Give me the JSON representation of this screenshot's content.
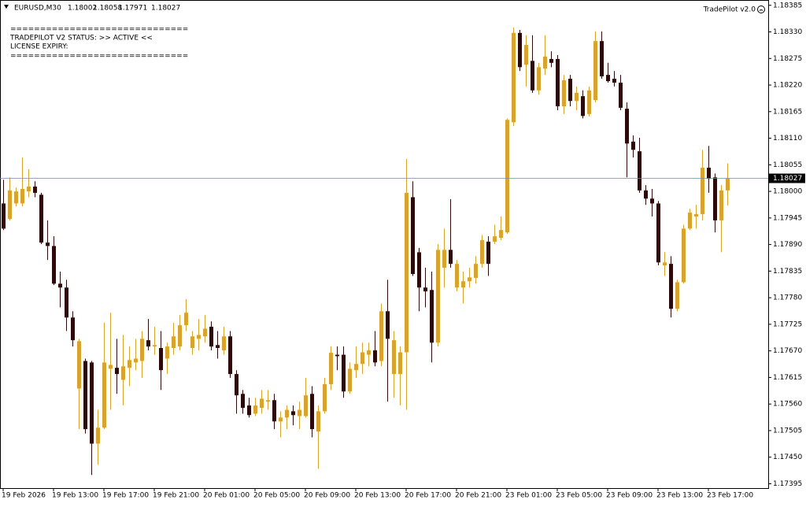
{
  "chart_data": {
    "type": "candlestick",
    "symbol": "EURUSD,M30",
    "indicator": "TradePilot v2.0",
    "annotations": [
      "==============================",
      "TRADEPILOT V2 STATUS: >> ACTIVE <<",
      "LICENSE EXPIRY:",
      "=============================="
    ],
    "colors": {
      "up": "#d8a42c",
      "down": "#2a0a0a"
    },
    "grid": false,
    "ylim": [
      1.17386,
      1.18396
    ],
    "yticks": [
      1.18385,
      {
        "value": 1.1833,
        "label": "1.18330"
      },
      1.18275,
      {
        "value": 1.1822,
        "label": "1.18220"
      },
      1.18165,
      {
        "value": 1.1811,
        "label": "1.18110"
      },
      1.18055,
      {
        "value": 1.18,
        "label": "1.18000"
      },
      1.17945,
      {
        "value": 1.1789,
        "label": "1.17890"
      },
      1.17835,
      {
        "value": 1.1778,
        "label": "1.17780"
      },
      1.17725,
      {
        "value": 1.1767,
        "label": "1.17670"
      },
      1.17615,
      {
        "value": 1.1756,
        "label": "1.17560"
      },
      1.17505,
      {
        "value": 1.1745,
        "label": "1.17450"
      },
      1.17395
    ],
    "categories": [
      "19 Feb 2026",
      null,
      null,
      null,
      null,
      null,
      null,
      null,
      "19 Feb 13:00",
      null,
      null,
      null,
      null,
      null,
      null,
      null,
      "19 Feb 17:00",
      null,
      null,
      null,
      null,
      null,
      null,
      null,
      "19 Feb 21:00",
      null,
      null,
      null,
      null,
      null,
      null,
      null,
      "20 Feb 01:00",
      null,
      null,
      null,
      null,
      null,
      null,
      null,
      "20 Feb 05:00",
      null,
      null,
      null,
      null,
      null,
      null,
      null,
      "20 Feb 09:00",
      null,
      null,
      null,
      null,
      null,
      null,
      null,
      "20 Feb 13:00",
      null,
      null,
      null,
      null,
      null,
      null,
      null,
      "20 Feb 17:00",
      null,
      null,
      null,
      null,
      null,
      null,
      null,
      "20 Feb 21:00",
      null,
      null,
      null,
      null,
      null,
      null,
      null,
      "23 Feb 01:00",
      null,
      null,
      null,
      null,
      null,
      null,
      null,
      "23 Feb 05:00",
      null,
      null,
      null,
      null,
      null,
      null,
      null,
      "23 Feb 09:00",
      null,
      null,
      null,
      null,
      null,
      null,
      null,
      "23 Feb 13:00",
      null,
      null,
      null,
      null,
      null,
      null,
      null,
      "23 Feb 17:00",
      null,
      null,
      null
    ],
    "open": [
      1.17975,
      1.17943,
      1.17975,
      1.17975,
      1.18,
      1.1801,
      1.17993,
      1.17894,
      1.17887,
      1.17809,
      1.17801,
      1.17739,
      1.17592,
      1.17649,
      1.17646,
      1.17478,
      1.17511,
      1.17633,
      1.17635,
      1.1761,
      1.17635,
      1.17646,
      1.17649,
      1.17692,
      1.17679,
      1.17676,
      1.17654,
      1.17676,
      1.17679,
      1.17723,
      1.17676,
      1.17695,
      1.177,
      1.1772,
      1.17682,
      1.17671,
      1.177,
      1.17622,
      1.17581,
      1.17557,
      1.1754,
      1.17552,
      1.17565,
      1.17568,
      1.17524,
      1.17532,
      1.17545,
      1.17535,
      1.17535,
      1.17581,
      1.17503,
      1.17545,
      1.17601,
      1.17662,
      1.17662,
      1.17586,
      1.1763,
      1.17643,
      1.17662,
      1.17671,
      1.17649,
      1.17752,
      1.17622,
      1.17622,
      1.17667,
      1.17988,
      1.17874,
      1.17801,
      1.17796,
      1.17687,
      1.17842,
      1.17879,
      1.17801,
      1.17801,
      1.17814,
      1.17821,
      1.1785,
      1.17896,
      1.17896,
      1.17904,
      1.17915,
      1.18143,
      1.18328,
      1.18262,
      1.1827,
      1.18209,
      1.18254,
      1.18274,
      1.18274,
      1.18176,
      1.18233,
      1.18187,
      1.18197,
      1.1816,
      1.18189,
      1.18311,
      1.18241,
      1.18233,
      1.18225,
      1.18171,
      1.18103,
      1.18083,
      1.18002,
      1.17985,
      1.17975,
      1.17847,
      1.1785,
      1.17757,
      1.17812,
      1.17923,
      1.17948,
      1.17953,
      1.18049,
      1.18029,
      1.1794,
      1.18002
    ],
    "high": [
      1.18024,
      1.18029,
      1.18008,
      1.1807,
      1.18046,
      1.18021,
      1.17997,
      1.1794,
      1.17907,
      1.17834,
      1.17817,
      1.17752,
      1.17695,
      1.17654,
      1.17649,
      1.17548,
      1.17728,
      1.17749,
      1.17695,
      1.17703,
      1.17679,
      1.17695,
      1.17711,
      1.17736,
      1.1772,
      1.17711,
      1.17687,
      1.17728,
      1.17744,
      1.17777,
      1.17711,
      1.17736,
      1.17744,
      1.17731,
      1.17711,
      1.1772,
      1.17711,
      1.1763,
      1.17589,
      1.17573,
      1.17573,
      1.17589,
      1.17589,
      1.17581,
      1.17545,
      1.17557,
      1.17557,
      1.17565,
      1.17614,
      1.17597,
      1.17557,
      1.17614,
      1.17679,
      1.17679,
      1.17679,
      1.17646,
      1.17679,
      1.17687,
      1.17687,
      1.17711,
      1.17768,
      1.17817,
      1.17711,
      1.17679,
      1.18067,
      1.18021,
      1.17883,
      1.17842,
      1.17834,
      1.17891,
      1.17923,
      1.17984,
      1.17858,
      1.17834,
      1.17842,
      1.17866,
      1.1791,
      1.17907,
      1.17931,
      1.17948,
      1.18151,
      1.18339,
      1.18334,
      1.18323,
      1.18323,
      1.18266,
      1.18323,
      1.1829,
      1.18282,
      1.18241,
      1.18241,
      1.18217,
      1.18209,
      1.18217,
      1.18331,
      1.18331,
      1.18266,
      1.18249,
      1.18241,
      1.18184,
      1.18116,
      1.18111,
      1.18013,
      1.18005,
      1.1798,
      1.17874,
      1.17866,
      1.17817,
      1.17931,
      1.17964,
      1.17972,
      1.18086,
      1.18094,
      1.18037,
      1.18013,
      1.18058
    ],
    "low": [
      1.1792,
      1.1794,
      1.17969,
      1.17969,
      1.17988,
      1.17988,
      1.17891,
      1.17858,
      1.17806,
      1.1776,
      1.17711,
      1.17679,
      1.17508,
      1.17499,
      1.17413,
      1.17434,
      1.17508,
      1.17548,
      1.17581,
      1.17557,
      1.17597,
      1.1763,
      1.17614,
      1.17671,
      1.17662,
      1.17589,
      1.17622,
      1.17662,
      1.17671,
      1.17711,
      1.17662,
      1.17671,
      1.17687,
      1.17671,
      1.17654,
      1.17662,
      1.17614,
      1.1754,
      1.1754,
      1.17532,
      1.17535,
      1.1754,
      1.17548,
      1.17508,
      1.17491,
      1.17508,
      1.17516,
      1.17508,
      1.17532,
      1.17491,
      1.17426,
      1.1754,
      1.17589,
      1.1763,
      1.17573,
      1.17581,
      1.17614,
      1.17622,
      1.17638,
      1.17638,
      1.17638,
      1.17565,
      1.17573,
      1.17557,
      1.17548,
      1.17825,
      1.17752,
      1.1776,
      1.17646,
      1.17679,
      1.17801,
      1.17842,
      1.17793,
      1.17768,
      1.17801,
      1.17809,
      1.17842,
      1.17825,
      1.17891,
      1.17899,
      1.17912,
      1.18135,
      1.18249,
      1.18217,
      1.18204,
      1.182,
      1.18241,
      1.18257,
      1.18168,
      1.1816,
      1.18176,
      1.18168,
      1.18151,
      1.18155,
      1.18184,
      1.18233,
      1.18225,
      1.18217,
      1.18168,
      1.18029,
      1.1807,
      1.17997,
      1.17972,
      1.17948,
      1.17847,
      1.17825,
      1.17739,
      1.17752,
      1.17809,
      1.1792,
      1.17923,
      1.1794,
      1.17997,
      1.17915,
      1.17874,
      1.17971
    ],
    "close": [
      1.17923,
      1.18002,
      1.18,
      1.18005,
      1.1801,
      1.17997,
      1.17894,
      1.17887,
      1.17809,
      1.17801,
      1.17739,
      1.17692,
      1.1769,
      1.17508,
      1.17478,
      1.17511,
      1.17646,
      1.17641,
      1.17622,
      1.17638,
      1.17651,
      1.17654,
      1.17695,
      1.17679,
      1.17682,
      1.1763,
      1.17679,
      1.177,
      1.17723,
      1.17749,
      1.177,
      1.17703,
      1.17716,
      1.17679,
      1.17676,
      1.177,
      1.17622,
      1.17578,
      1.17552,
      1.17537,
      1.17557,
      1.17571,
      1.17568,
      1.17524,
      1.17532,
      1.17548,
      1.17537,
      1.17548,
      1.17578,
      1.17508,
      1.17545,
      1.17601,
      1.17666,
      1.17659,
      1.17586,
      1.17633,
      1.17643,
      1.17667,
      1.17671,
      1.17646,
      1.17752,
      1.17695,
      1.17692,
      1.17667,
      1.17997,
      1.17829,
      1.17801,
      1.17793,
      1.17687,
      1.17879,
      1.17879,
      1.1785,
      1.1785,
      1.17814,
      1.17822,
      1.1785,
      1.17899,
      1.1785,
      1.17907,
      1.1792,
      1.18148,
      1.18328,
      1.18257,
      1.18303,
      1.18209,
      1.18257,
      1.18279,
      1.18266,
      1.18176,
      1.1823,
      1.18187,
      1.18204,
      1.18156,
      1.18209,
      1.18311,
      1.18238,
      1.18228,
      1.18225,
      1.18173,
      1.18099,
      1.18086,
      1.18002,
      1.17985,
      1.17975,
      1.17853,
      1.17853,
      1.17757,
      1.17812,
      1.17923,
      1.17956,
      1.17953,
      1.18049,
      1.18026,
      1.1794,
      1.18002,
      1.18027
    ]
  }
}
